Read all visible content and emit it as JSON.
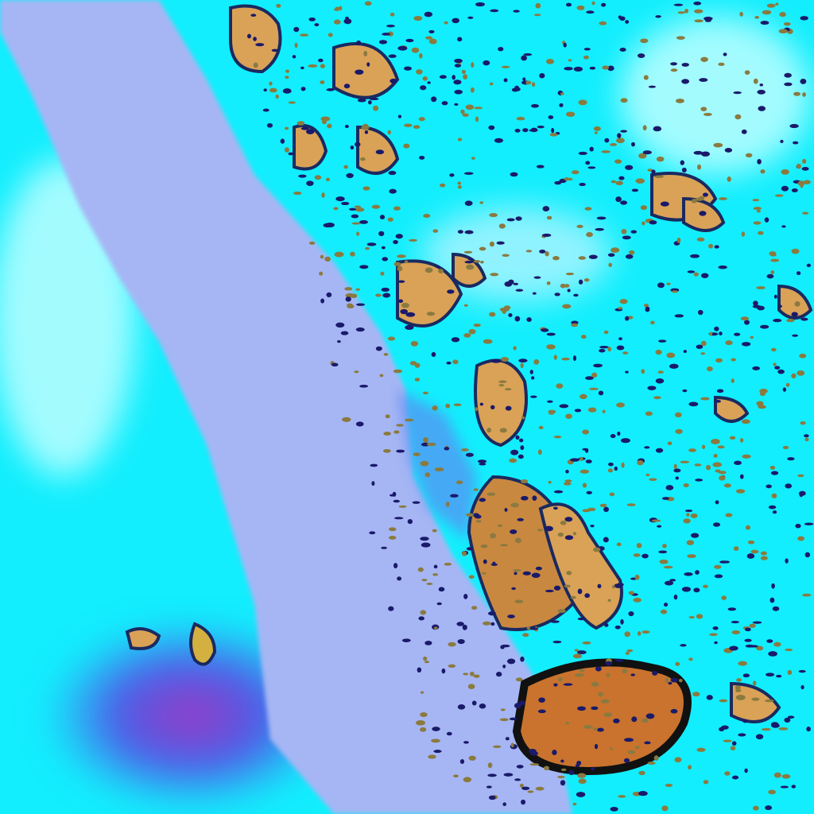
{
  "image": {
    "kind": "false-color satellite imagery",
    "colors": {
      "land_cyan": "#19f3ff",
      "haze_light": "#c8ffff",
      "sea": "#a4b4f4",
      "deep_blue": "#3f6ef0",
      "cloud_orange": "#d9a257",
      "cloud_dark_orange": "#c9732e",
      "cloud_edge": "#1a1a50",
      "purple_haze": "#8a3fc8"
    }
  }
}
